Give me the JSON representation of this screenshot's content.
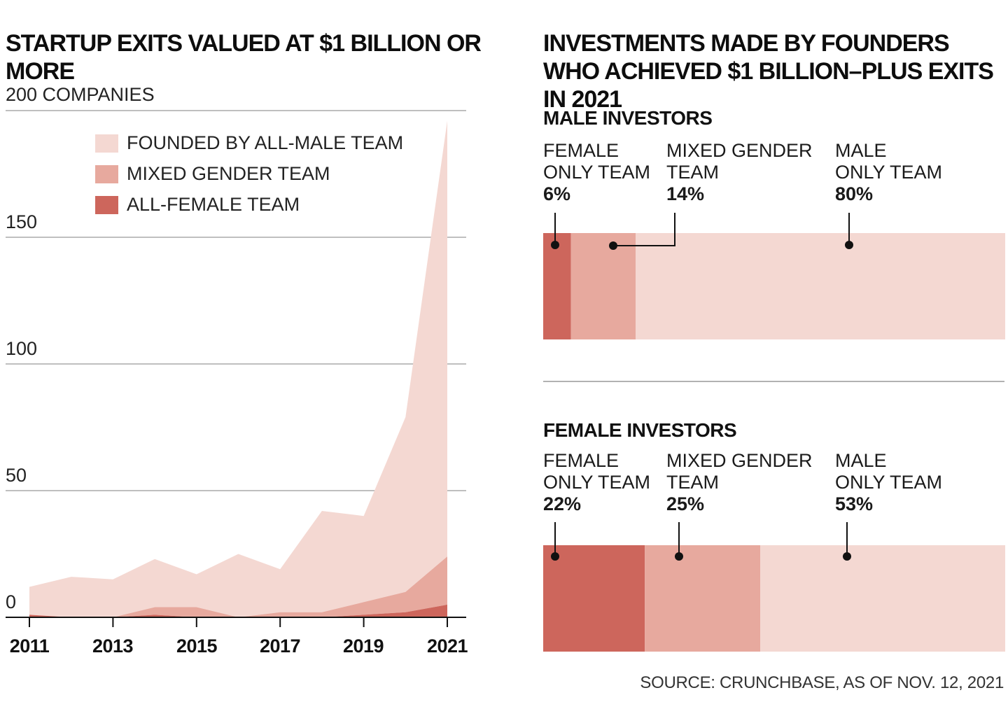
{
  "left_title": "STARTUP EXITS VALUED AT $1 BILLION OR MORE",
  "right_title": "INVESTMENTS MADE BY FOUNDERS WHO ACHIEVED $1 BILLION–PLUS EXITS IN 2021",
  "source": "SOURCE: CRUNCHBASE, AS OF NOV. 12, 2021",
  "colors": {
    "all_male": "#f4d8d2",
    "mixed": "#e7a99e",
    "all_female": "#cd665c",
    "grid": "#aaaaaa",
    "axis": "#111111"
  },
  "chart_data": [
    {
      "type": "area",
      "stacked": true,
      "title": "STARTUP EXITS VALUED AT $1 BILLION OR MORE",
      "ylabel": "200 COMPANIES",
      "ylim": [
        0,
        200
      ],
      "yticks": [
        0,
        50,
        100,
        150
      ],
      "xticks": [
        "2011",
        "2013",
        "2015",
        "2017",
        "2019",
        "2021"
      ],
      "x": [
        2011,
        2012,
        2013,
        2014,
        2015,
        2016,
        2017,
        2018,
        2019,
        2020,
        2021
      ],
      "legend": "top-left",
      "series": [
        {
          "name": "ALL-FEMALE TEAM",
          "values": [
            1,
            0,
            0,
            1,
            0,
            0,
            0,
            0,
            1,
            2,
            5
          ]
        },
        {
          "name": "MIXED GENDER TEAM",
          "values": [
            0,
            0,
            0,
            3,
            4,
            0,
            2,
            2,
            5,
            8,
            19
          ]
        },
        {
          "name": "FOUNDED BY ALL-MALE TEAM",
          "values": [
            11,
            16,
            15,
            19,
            13,
            25,
            17,
            40,
            34,
            69,
            172
          ]
        }
      ]
    },
    {
      "type": "bar",
      "stacked": true,
      "orientation": "horizontal",
      "title": "INVESTMENTS MADE BY FOUNDERS WHO ACHIEVED $1 BILLION–PLUS EXITS IN 2021",
      "categories": [
        "MALE INVESTORS",
        "FEMALE INVESTORS"
      ],
      "series": [
        {
          "name": "FEMALE ONLY TEAM",
          "values": [
            6,
            22
          ]
        },
        {
          "name": "MIXED GENDER TEAM",
          "values": [
            14,
            25
          ]
        },
        {
          "name": "MALE ONLY TEAM",
          "values": [
            80,
            53
          ]
        }
      ]
    }
  ],
  "bar_labels": {
    "male_investors": {
      "female_only": {
        "l1": "FEMALE",
        "l2": "ONLY TEAM",
        "pct": "6%"
      },
      "mixed": {
        "l1": "MIXED GENDER",
        "l2": "TEAM",
        "pct": "14%"
      },
      "male_only": {
        "l1": "MALE",
        "l2": "ONLY TEAM",
        "pct": "80%"
      }
    },
    "female_investors": {
      "female_only": {
        "l1": "FEMALE",
        "l2": "ONLY TEAM",
        "pct": "22%"
      },
      "mixed": {
        "l1": "MIXED GENDER",
        "l2": "TEAM",
        "pct": "25%"
      },
      "male_only": {
        "l1": "MALE",
        "l2": "ONLY TEAM",
        "pct": "53%"
      }
    }
  }
}
